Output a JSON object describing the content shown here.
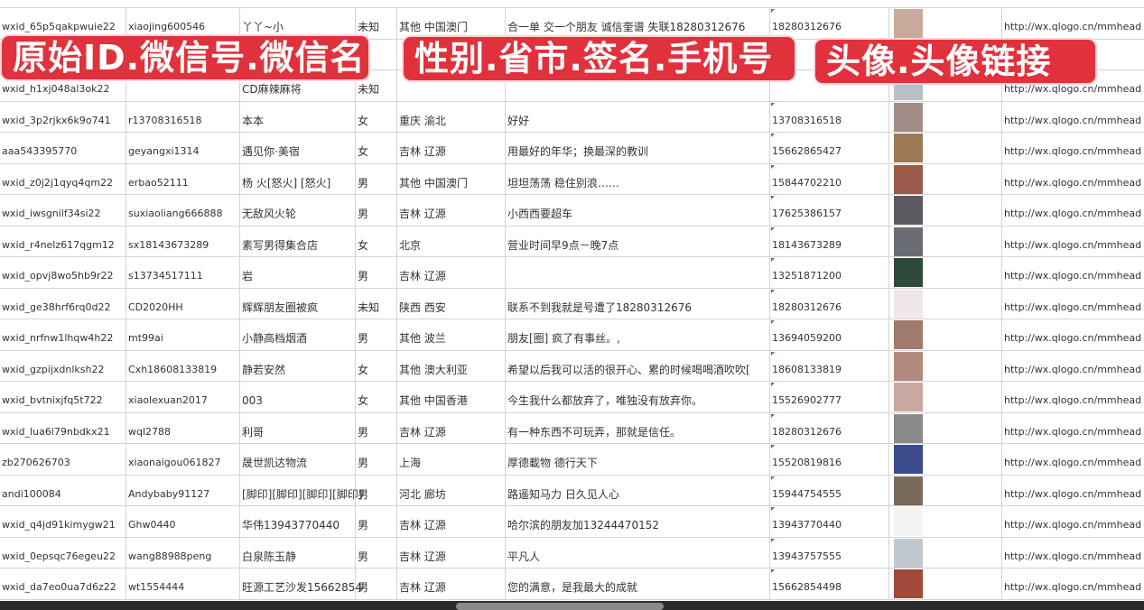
{
  "overlay_labels": [
    "原始ID.微信号.微信名",
    "性别.省市.签名.手机号",
    "头像.头像链接"
  ],
  "colors": {
    "label_bg": "#e0313c",
    "grid": "#d4d4d4",
    "bottom_bar": "#2b2b2b"
  },
  "rows": [
    {
      "id": "wxid_65p5qakpwuie22",
      "wechat": "xiaojing600546",
      "name": "丫丫~小",
      "gender": "未知",
      "region": "其他 中国澳门",
      "signature": "合一单 交一个朋友 诚信奎谱 失联18280312676",
      "phone": "18280312676",
      "avatar_color": "#c9a99a",
      "link": "http://wx.qlogo.cn/mmhead"
    },
    {
      "id": "",
      "wechat": "",
      "name": "",
      "gender": "",
      "region": "",
      "signature": "",
      "phone": "5386",
      "avatar_color": "#8a9ab8",
      "link": "/mmhead"
    },
    {
      "id": "wxid_h1xj048al3ok22",
      "wechat": "",
      "name": "CD麻辣麻将",
      "gender": "未知",
      "region": "",
      "signature": "",
      "phone": "",
      "avatar_color": "#b8c0c8",
      "link": "http://wx.qlogo.cn/mmhead"
    },
    {
      "id": "wxid_3p2rjkx6k9o741",
      "wechat": "r13708316518",
      "name": "本本",
      "gender": "女",
      "region": "重庆 渝北",
      "signature": "好好",
      "phone": "13708316518",
      "avatar_color": "#a08c86",
      "link": "http://wx.qlogo.cn/mmhead"
    },
    {
      "id": "aaa543395770",
      "wechat": "geyangxi1314",
      "name": "遇见你·美宿",
      "gender": "女",
      "region": "吉林 辽源",
      "signature": "用最好的年华；换最深的教训",
      "phone": "15662865427",
      "avatar_color": "#9b7a55",
      "link": "http://wx.qlogo.cn/mmhead"
    },
    {
      "id": "wxid_z0j2j1qyq4qm22",
      "wechat": "erbao52111",
      "name": "杨 火[怒火] [怒火]",
      "gender": "男",
      "region": "其他 中国澳门",
      "signature": "坦坦荡荡 稳住别浪……",
      "phone": "15844702210",
      "avatar_color": "#9a5a4a",
      "link": "http://wx.qlogo.cn/mmhead"
    },
    {
      "id": "wxid_iwsgnilf34si22",
      "wechat": "suxiaoliang666888",
      "name": "无敌风火轮",
      "gender": "男",
      "region": "吉林 辽源",
      "signature": "小西西要超车",
      "phone": "17625386157",
      "avatar_color": "#5a5a60",
      "link": "http://wx.qlogo.cn/mmhead"
    },
    {
      "id": "wxid_r4nelz617qgm12",
      "wechat": "sx18143673289",
      "name": "素写男得集合店",
      "gender": "女",
      "region": "北京",
      "signature": "营业时间早9点－晚7点",
      "phone": "18143673289",
      "avatar_color": "#6a6e74",
      "link": "http://wx.qlogo.cn/mmhead"
    },
    {
      "id": "wxid_opvj8wo5hb9r22",
      "wechat": "s13734517111",
      "name": "岩",
      "gender": "男",
      "region": "吉林 辽源",
      "signature": "",
      "phone": "13251871200",
      "avatar_color": "#2e4a3a",
      "link": "http://wx.qlogo.cn/mmhead"
    },
    {
      "id": "wxid_ge38hrf6rq0d22",
      "wechat": "CD2020HH",
      "name": "辉辉朋友圈被疯",
      "gender": "未知",
      "region": "陕西 西安",
      "signature": "联系不到我就是号遭了18280312676",
      "phone": "18280312676",
      "avatar_color": "#f0e8e8",
      "link": "http://wx.qlogo.cn/mmhead"
    },
    {
      "id": "wxid_nrfnw1lhqw4h22",
      "wechat": "mt99ai",
      "name": "小静高档烟酒",
      "gender": "男",
      "region": "其他 波兰",
      "signature": "朋友[圈] 疯了有事丝。,",
      "phone": "13694059200",
      "avatar_color": "#a07a6a",
      "link": "http://wx.qlogo.cn/mmhead"
    },
    {
      "id": "wxid_gzpijxdnlksh22",
      "wechat": "Cxh18608133819",
      "name": "静若安然",
      "gender": "女",
      "region": "其他 澳大利亚",
      "signature": "希望以后我可以活的很开心、累的时候喝喝酒吹吹[",
      "phone": "18608133819",
      "avatar_color": "#b08a7a",
      "link": "http://wx.qlogo.cn/mmhead"
    },
    {
      "id": "wxid_bvtnixjfq5t722",
      "wechat": "xiaolexuan2017",
      "name": "003",
      "gender": "女",
      "region": "其他 中国香港",
      "signature": "今生我什么都放弃了，唯独没有放弃你。",
      "phone": "15526902777",
      "avatar_color": "#c8a8a0",
      "link": "http://wx.qlogo.cn/mmhead"
    },
    {
      "id": "wxid_lua6l79nbdkx21",
      "wechat": "wql2788",
      "name": "利哥",
      "gender": "男",
      "region": "吉林 辽源",
      "signature": "有一种东西不可玩弄，那就是信任。",
      "phone": "18280312676",
      "avatar_color": "#8a8a8a",
      "link": "http://wx.qlogo.cn/mmhead"
    },
    {
      "id": "zb270626703",
      "wechat": "xiaonaigou061827",
      "name": "晟世凯达物流",
      "gender": "男",
      "region": "上海",
      "signature": "厚德載物 德行天下",
      "phone": "15520819816",
      "avatar_color": "#3a4a8a",
      "link": "http://wx.qlogo.cn/mmhead"
    },
    {
      "id": "andi100084",
      "wechat": "Andybaby91127",
      "name": "[脚印][脚印][脚印][脚印]",
      "gender": "男",
      "region": "河北 廊坊",
      "signature": "路遥知马力 日久见人心",
      "phone": "15944754555",
      "avatar_color": "#7a6a5a",
      "link": "http://wx.qlogo.cn/mmhead"
    },
    {
      "id": "wxid_q4jd91kimygw21",
      "wechat": "Ghw0440",
      "name": "华伟13943770440",
      "gender": "男",
      "region": "吉林 辽源",
      "signature": "哈尔滨的朋友加13244470152",
      "phone": "13943770440",
      "avatar_color": "#f4f4f4",
      "link": "http://wx.qlogo.cn/mmhead"
    },
    {
      "id": "wxid_0epsqc76egeu22",
      "wechat": "wang88988peng",
      "name": "白泉陈玉静",
      "gender": "男",
      "region": "吉林 辽源",
      "signature": "平凡人",
      "phone": "13943757555",
      "avatar_color": "#c0c8d0",
      "link": "http://wx.qlogo.cn/mmhead"
    },
    {
      "id": "wxid_da7eo0ua7d6z22",
      "wechat": "wt1554444",
      "name": "旺源工艺沙发15662854",
      "gender": "男",
      "region": "吉林 辽源",
      "signature": "您的满意，是我最大的成就",
      "phone": "15662854498",
      "avatar_color": "#a04a3a",
      "link": "http://wx.qlogo.cn/mmhead"
    }
  ]
}
